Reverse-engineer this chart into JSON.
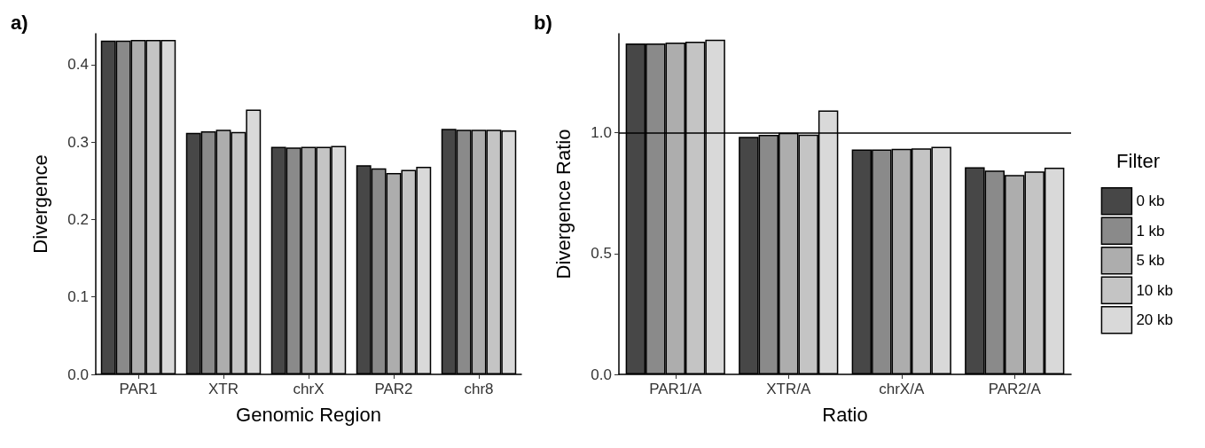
{
  "chart_data": [
    {
      "type": "bar",
      "title": "a)",
      "xlabel": "Genomic Region",
      "ylabel": "Divergence",
      "categories": [
        "PAR1",
        "XTR",
        "chrX",
        "PAR2",
        "chr8"
      ],
      "series": [
        {
          "color": "#474747",
          "values": [
            0.431,
            0.312,
            0.294,
            0.27,
            0.317
          ]
        },
        {
          "color": "#8a8a8a",
          "values": [
            0.431,
            0.314,
            0.293,
            0.266,
            0.316
          ]
        },
        {
          "color": "#adadad",
          "values": [
            0.432,
            0.316,
            0.294,
            0.26,
            0.316
          ]
        },
        {
          "color": "#c4c4c4",
          "values": [
            0.432,
            0.313,
            0.294,
            0.264,
            0.316
          ]
        },
        {
          "color": "#d9d9d9",
          "values": [
            0.432,
            0.342,
            0.295,
            0.268,
            0.315
          ]
        }
      ],
      "ylim": [
        0,
        0.44
      ],
      "yticks": [
        {
          "value": 0,
          "label": "0.0"
        },
        {
          "value": 0.1,
          "label": "0.1"
        },
        {
          "value": 0.2,
          "label": "0.2"
        },
        {
          "value": 0.3,
          "label": "0.3"
        },
        {
          "value": 0.4,
          "label": "0.4"
        }
      ],
      "grid": false,
      "legend": false
    },
    {
      "type": "bar",
      "title": "b)",
      "xlabel": "Ratio",
      "ylabel": "Divergence Ratio",
      "legend_title": "Filter",
      "categories": [
        "PAR1/A",
        "XTR/A",
        "chrX/A",
        "PAR2/A"
      ],
      "series": [
        {
          "name": "0 kb",
          "color": "#474747",
          "values": [
            1.37,
            0.983,
            0.931,
            0.857
          ]
        },
        {
          "name": "1 kb",
          "color": "#8a8a8a",
          "values": [
            1.37,
            0.991,
            0.931,
            0.844
          ]
        },
        {
          "name": "5 kb",
          "color": "#adadad",
          "values": [
            1.373,
            1.0,
            0.934,
            0.825
          ]
        },
        {
          "name": "10 kb",
          "color": "#c4c4c4",
          "values": [
            1.377,
            0.992,
            0.935,
            0.84
          ]
        },
        {
          "name": "20 kb",
          "color": "#d9d9d9",
          "values": [
            1.385,
            1.092,
            0.942,
            0.856
          ]
        }
      ],
      "ylim": [
        0,
        1.41
      ],
      "yticks": [
        {
          "value": 0,
          "label": "0.0"
        },
        {
          "value": 0.5,
          "label": "0.5"
        },
        {
          "value": 1,
          "label": "1.0"
        }
      ],
      "ref_lines": [
        {
          "axis": "y",
          "value": 1,
          "label": null,
          "color": "#000000"
        }
      ],
      "grid": false,
      "legend": "right"
    }
  ]
}
